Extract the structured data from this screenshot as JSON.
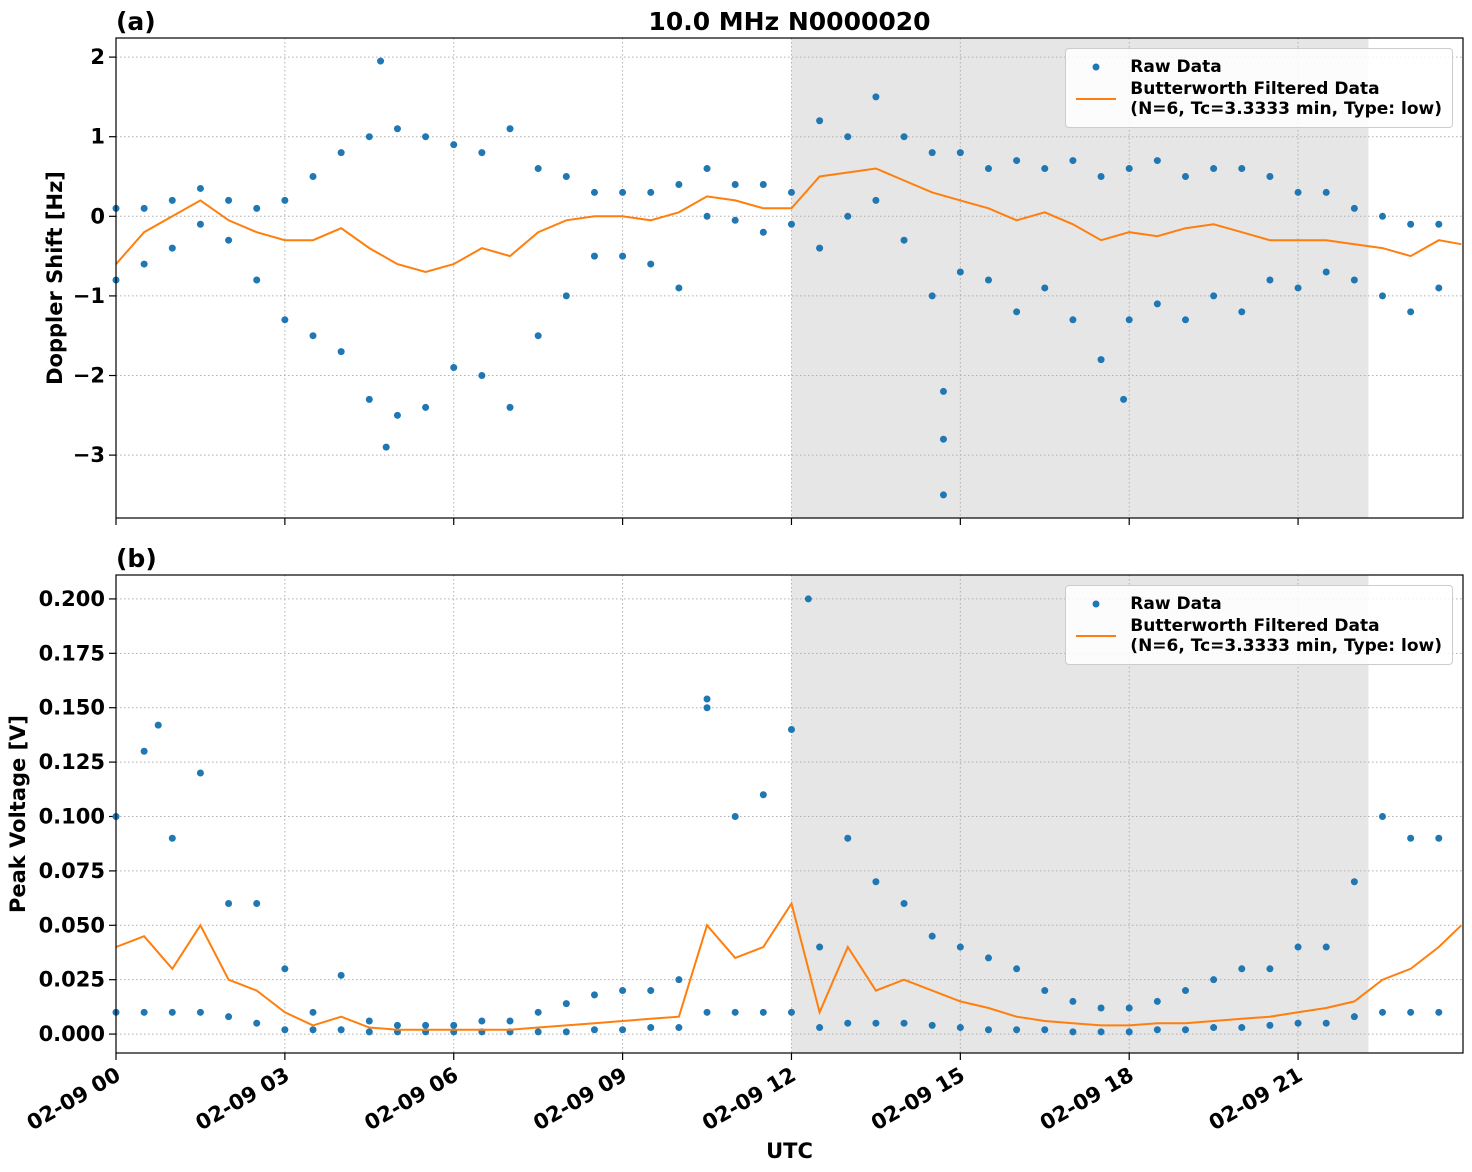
{
  "chart_data": [
    {
      "type": "line",
      "panel_label": "(a)",
      "title": "10.0 MHz N0000020",
      "y_label": "Doppler Shift [Hz]",
      "xlim": [
        0,
        23.93
      ],
      "ylim": [
        -3.79,
        2.24
      ],
      "xticks": [
        0,
        3,
        6,
        9,
        12,
        15,
        18,
        21
      ],
      "yticks": [
        {
          "value": -3,
          "label": "−3"
        },
        {
          "value": -2,
          "label": "−2"
        },
        {
          "value": -1,
          "label": "−1"
        },
        0,
        1,
        2
      ],
      "grid": true,
      "legend": "upper right",
      "shade": [
        12,
        22.25
      ],
      "shade_color": "#e6e6e6",
      "series": [
        {
          "name": "Raw Data",
          "color": "#1f77b4",
          "mode": "markers",
          "x": [
            0,
            0,
            0.5,
            0.5,
            1,
            1,
            1.5,
            1.5,
            2,
            2,
            2.5,
            2.5,
            3,
            3,
            3.5,
            3.5,
            4,
            4,
            4.5,
            4.5,
            5,
            5,
            5.5,
            5.5,
            6,
            6,
            6.5,
            6.5,
            7,
            7,
            7.5,
            7.5,
            8,
            8,
            8.5,
            8.5,
            9,
            9,
            9.5,
            9.5,
            10,
            10,
            10.5,
            10.5,
            11,
            11,
            11.5,
            11.5,
            12,
            12,
            12.5,
            12.5,
            13,
            13,
            13.5,
            13.5,
            14,
            14,
            14.5,
            14.5,
            15,
            15,
            15.5,
            15.5,
            16,
            16,
            16.5,
            16.5,
            17,
            17,
            17.5,
            17.5,
            18,
            18,
            18.5,
            18.5,
            19,
            19,
            19.5,
            19.5,
            20,
            20,
            20.5,
            20.5,
            21,
            21,
            21.5,
            21.5,
            22,
            22,
            22.5,
            22.5,
            23,
            23,
            23.5,
            23.5,
            4.7,
            4.8,
            14.7,
            14.7,
            14.7,
            17.9
          ],
          "values": [
            0.1,
            -0.8,
            0.1,
            -0.6,
            0.2,
            -0.4,
            0.35,
            -0.1,
            0.2,
            -0.3,
            0.1,
            -0.8,
            0.2,
            -1.3,
            0.5,
            -1.5,
            0.8,
            -1.7,
            1.0,
            -2.3,
            1.1,
            -2.5,
            1.0,
            -2.4,
            0.9,
            -1.9,
            0.8,
            -2.0,
            1.1,
            -2.4,
            0.6,
            -1.5,
            0.5,
            -1.0,
            0.3,
            -0.5,
            0.3,
            -0.5,
            0.3,
            -0.6,
            0.4,
            -0.9,
            0.6,
            0.0,
            0.4,
            -0.05,
            0.4,
            -0.2,
            0.3,
            -0.1,
            1.2,
            -0.4,
            1.0,
            0.0,
            1.5,
            0.2,
            1.0,
            -0.3,
            0.8,
            -1.0,
            0.8,
            -0.7,
            0.6,
            -0.8,
            0.7,
            -1.2,
            0.6,
            -0.9,
            0.7,
            -1.3,
            0.5,
            -1.8,
            0.6,
            -1.3,
            0.7,
            -1.1,
            0.5,
            -1.3,
            0.6,
            -1.0,
            0.6,
            -1.2,
            0.5,
            -0.8,
            0.3,
            -0.9,
            0.3,
            -0.7,
            0.1,
            -0.8,
            0.0,
            -1.0,
            -0.1,
            -1.2,
            -0.1,
            -0.9,
            1.95,
            -2.9,
            -3.5,
            -2.8,
            -2.2,
            -2.3
          ]
        },
        {
          "name": "Butterworth Filtered Data\n(N=6, Tc=3.3333 min, Type: low)",
          "color": "#ff7f0e",
          "mode": "line",
          "x": [
            0,
            0.5,
            1,
            1.5,
            2,
            2.5,
            3,
            3.5,
            4,
            4.5,
            5,
            5.5,
            6,
            6.5,
            7,
            7.5,
            8,
            8.5,
            9,
            9.5,
            10,
            10.5,
            11,
            11.5,
            12,
            12.5,
            13,
            13.5,
            14,
            14.5,
            15,
            15.5,
            16,
            16.5,
            17,
            17.5,
            18,
            18.5,
            19,
            19.5,
            20,
            20.5,
            21,
            21.5,
            22,
            22.5,
            23,
            23.5,
            23.9
          ],
          "values": [
            -0.6,
            -0.2,
            0.0,
            0.2,
            -0.05,
            -0.2,
            -0.3,
            -0.3,
            -0.15,
            -0.4,
            -0.6,
            -0.7,
            -0.6,
            -0.4,
            -0.5,
            -0.2,
            -0.05,
            0.0,
            0.0,
            -0.05,
            0.05,
            0.25,
            0.2,
            0.1,
            0.1,
            0.5,
            0.55,
            0.6,
            0.45,
            0.3,
            0.2,
            0.1,
            -0.05,
            0.05,
            -0.1,
            -0.3,
            -0.2,
            -0.25,
            -0.15,
            -0.1,
            -0.2,
            -0.3,
            -0.3,
            -0.3,
            -0.35,
            -0.4,
            -0.5,
            -0.3,
            -0.35
          ]
        }
      ]
    },
    {
      "type": "line",
      "panel_label": "(b)",
      "y_label": "Peak Voltage [V]",
      "x_label": "UTC",
      "xlim": [
        0,
        23.93
      ],
      "ylim": [
        -0.0087,
        0.211
      ],
      "xticks": [
        {
          "value": 0,
          "label": "02-09 00"
        },
        {
          "value": 3,
          "label": "02-09 03"
        },
        {
          "value": 6,
          "label": "02-09 06"
        },
        {
          "value": 9,
          "label": "02-09 09"
        },
        {
          "value": 12,
          "label": "02-09 12"
        },
        {
          "value": 15,
          "label": "02-09 15"
        },
        {
          "value": 18,
          "label": "02-09 18"
        },
        {
          "value": 21,
          "label": "02-09 21"
        }
      ],
      "yticks": [
        {
          "value": 0,
          "label": "0.000"
        },
        {
          "value": 0.025,
          "label": "0.025"
        },
        {
          "value": 0.05,
          "label": "0.050"
        },
        {
          "value": 0.075,
          "label": "0.075"
        },
        {
          "value": 0.1,
          "label": "0.100"
        },
        {
          "value": 0.125,
          "label": "0.125"
        },
        {
          "value": 0.15,
          "label": "0.150"
        },
        {
          "value": 0.175,
          "label": "0.175"
        },
        {
          "value": 0.2,
          "label": "0.200"
        }
      ],
      "grid": true,
      "legend": "upper right",
      "shade": [
        12,
        22.25
      ],
      "shade_color": "#e6e6e6",
      "series": [
        {
          "name": "Raw Data",
          "color": "#1f77b4",
          "mode": "markers",
          "x": [
            0,
            0,
            0.5,
            0.5,
            1,
            1,
            1.5,
            1.5,
            2,
            2,
            2.5,
            2.5,
            3,
            3,
            3.5,
            3.5,
            4,
            4,
            4.5,
            4.5,
            5,
            5,
            5.5,
            5.5,
            6,
            6,
            6.5,
            6.5,
            7,
            7,
            7.5,
            7.5,
            8,
            8,
            8.5,
            8.5,
            9,
            9,
            9.5,
            9.5,
            10,
            10,
            10.5,
            10.5,
            11,
            11,
            11.5,
            11.5,
            12,
            12,
            12.5,
            12.5,
            13,
            13,
            13.5,
            13.5,
            14,
            14,
            14.5,
            14.5,
            15,
            15,
            15.5,
            15.5,
            16,
            16,
            16.5,
            16.5,
            17,
            17,
            17.5,
            17.5,
            18,
            18,
            18.5,
            18.5,
            19,
            19,
            19.5,
            19.5,
            20,
            20,
            20.5,
            20.5,
            21,
            21,
            21.5,
            21.5,
            22,
            22,
            22.5,
            22.5,
            23,
            23,
            23.5,
            23.5,
            12.3,
            10.5,
            0.75
          ],
          "values": [
            0.1,
            0.01,
            0.13,
            0.01,
            0.09,
            0.01,
            0.12,
            0.01,
            0.06,
            0.008,
            0.06,
            0.005,
            0.03,
            0.002,
            0.01,
            0.002,
            0.027,
            0.002,
            0.006,
            0.001,
            0.004,
            0.001,
            0.004,
            0.001,
            0.004,
            0.001,
            0.006,
            0.001,
            0.006,
            0.001,
            0.01,
            0.001,
            0.014,
            0.001,
            0.018,
            0.002,
            0.02,
            0.002,
            0.02,
            0.003,
            0.025,
            0.003,
            0.15,
            0.01,
            0.1,
            0.01,
            0.11,
            0.01,
            0.14,
            0.01,
            0.04,
            0.003,
            0.09,
            0.005,
            0.07,
            0.005,
            0.06,
            0.005,
            0.045,
            0.004,
            0.04,
            0.003,
            0.035,
            0.002,
            0.03,
            0.002,
            0.02,
            0.002,
            0.015,
            0.001,
            0.012,
            0.001,
            0.012,
            0.001,
            0.015,
            0.002,
            0.02,
            0.002,
            0.025,
            0.003,
            0.03,
            0.003,
            0.03,
            0.004,
            0.04,
            0.005,
            0.04,
            0.005,
            0.07,
            0.008,
            0.1,
            0.01,
            0.09,
            0.01,
            0.09,
            0.01,
            0.2,
            0.154,
            0.142
          ]
        },
        {
          "name": "Butterworth Filtered Data\n(N=6, Tc=3.3333 min, Type: low)",
          "color": "#ff7f0e",
          "mode": "line",
          "x": [
            0,
            0.5,
            1,
            1.5,
            2,
            2.5,
            3,
            3.5,
            4,
            4.5,
            5,
            5.5,
            6,
            6.5,
            7,
            7.5,
            8,
            8.5,
            9,
            9.5,
            10,
            10.5,
            11,
            11.5,
            12,
            12.5,
            13,
            13.5,
            14,
            14.5,
            15,
            15.5,
            16,
            16.5,
            17,
            17.5,
            18,
            18.5,
            19,
            19.5,
            20,
            20.5,
            21,
            21.5,
            22,
            22.5,
            23,
            23.5,
            23.9
          ],
          "values": [
            0.04,
            0.045,
            0.03,
            0.05,
            0.025,
            0.02,
            0.01,
            0.004,
            0.008,
            0.003,
            0.002,
            0.002,
            0.002,
            0.002,
            0.002,
            0.003,
            0.004,
            0.005,
            0.006,
            0.007,
            0.008,
            0.05,
            0.035,
            0.04,
            0.06,
            0.01,
            0.04,
            0.02,
            0.025,
            0.02,
            0.015,
            0.012,
            0.008,
            0.006,
            0.005,
            0.004,
            0.004,
            0.005,
            0.005,
            0.006,
            0.007,
            0.008,
            0.01,
            0.012,
            0.015,
            0.025,
            0.03,
            0.04,
            0.05
          ]
        }
      ]
    }
  ]
}
